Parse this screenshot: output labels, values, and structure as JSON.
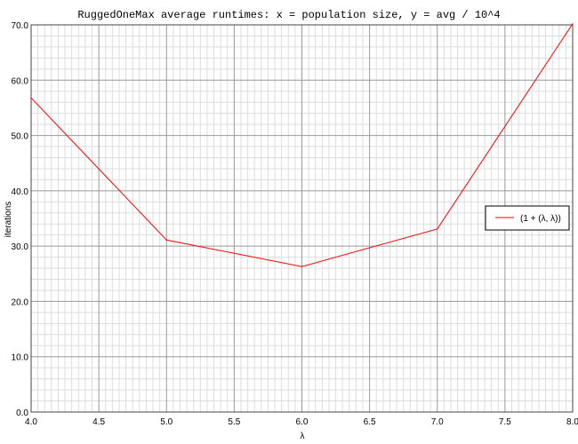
{
  "chart_data": {
    "type": "line",
    "title": "RuggedOneMax average runtimes: x = population size, y = avg / 10^4",
    "xlabel": "λ",
    "ylabel": "iterations",
    "xlim": [
      4.0,
      8.0
    ],
    "ylim": [
      0.0,
      70.0
    ],
    "x_ticks": [
      "4.0",
      "4.5",
      "5.0",
      "5.5",
      "6.0",
      "6.5",
      "7.0",
      "7.5",
      "8.0"
    ],
    "y_ticks": [
      "0.0",
      "10.0",
      "20.0",
      "30.0",
      "40.0",
      "50.0",
      "60.0",
      "70.0"
    ],
    "grid": true,
    "legend_position": "right",
    "series": [
      {
        "name": "(1 + (λ, λ))",
        "color": "#ff0000",
        "x": [
          4.0,
          5.0,
          6.0,
          7.0,
          8.0
        ],
        "y": [
          56.8,
          31.1,
          26.3,
          33.1,
          70.2
        ]
      }
    ]
  }
}
